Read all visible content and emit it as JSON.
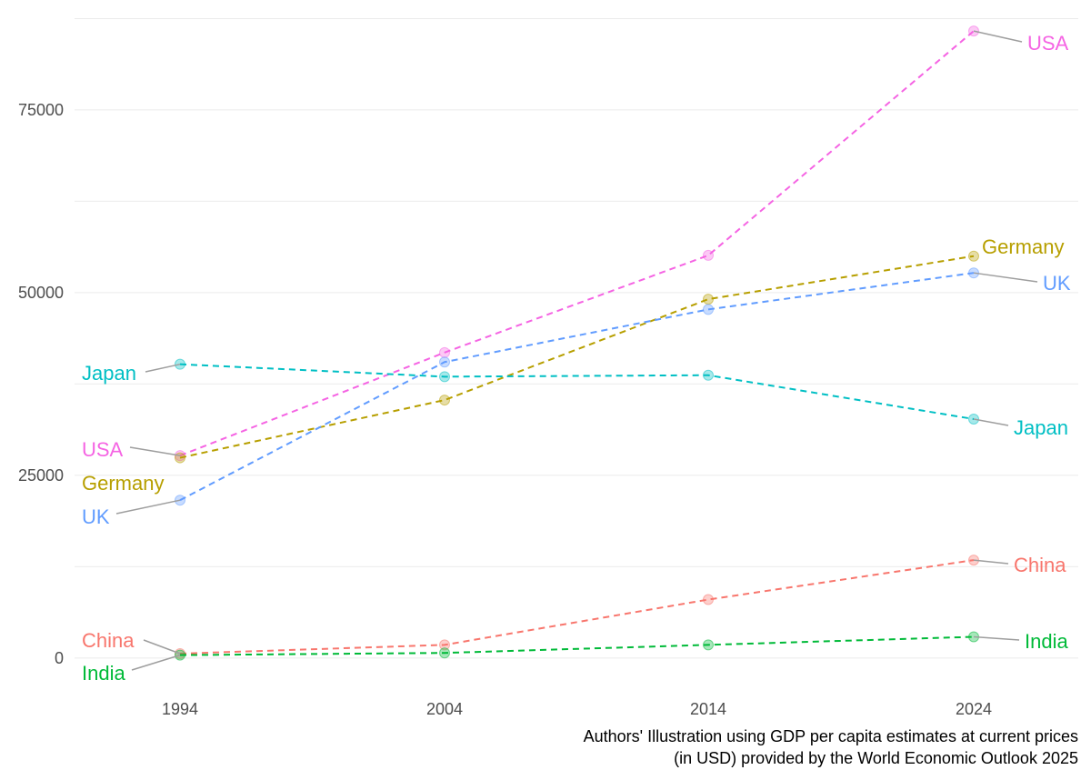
{
  "chart_data": {
    "type": "line",
    "title": "",
    "xlabel": "",
    "ylabel": "",
    "x": [
      "1994",
      "2004",
      "2014",
      "2024"
    ],
    "ylim": [
      -4500,
      88800
    ],
    "yticks": [
      0,
      25000,
      50000,
      75000
    ],
    "ytick_labels": [
      "0",
      "25000",
      "50000",
      "75000"
    ],
    "grid": "horizontal",
    "legend": "none (direct labels at both ends)",
    "series": [
      {
        "name": "USA",
        "color": "#f564e3",
        "values": [
          27700,
          41800,
          55100,
          85800
        ],
        "label_left": "USA",
        "label_right": "USA"
      },
      {
        "name": "Germany",
        "color": "#b79f00",
        "values": [
          27400,
          35300,
          49100,
          55000
        ],
        "label_left": "Germany",
        "label_right": "Germany"
      },
      {
        "name": "UK",
        "color": "#619cff",
        "values": [
          21600,
          40500,
          47700,
          52700
        ],
        "label_left": "UK",
        "label_right": "UK"
      },
      {
        "name": "Japan",
        "color": "#00bfc4",
        "values": [
          40200,
          38500,
          38700,
          32700
        ],
        "label_left": "Japan",
        "label_right": "Japan"
      },
      {
        "name": "China",
        "color": "#f8766d",
        "values": [
          600,
          1800,
          8000,
          13400
        ],
        "label_left": "China",
        "label_right": "China"
      },
      {
        "name": "India",
        "color": "#00ba38",
        "values": [
          400,
          700,
          1800,
          2900
        ],
        "label_left": "India",
        "label_right": "India"
      }
    ],
    "caption": [
      "Authors' Illustration using GDP per capita estimates at current prices",
      "(in USD) provided by the World Economic Outlook 2025"
    ]
  }
}
